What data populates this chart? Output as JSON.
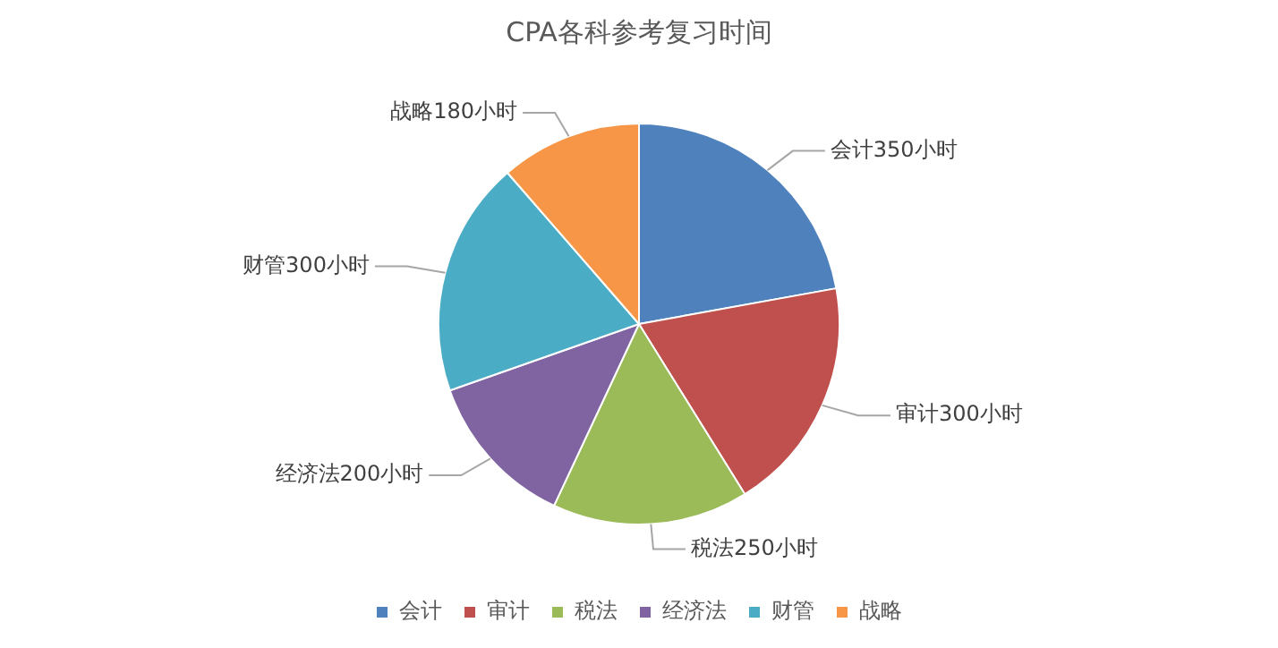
{
  "chart_data": {
    "type": "pie",
    "title": "CPA各科参考复习时间",
    "categories": [
      "会计",
      "审计",
      "税法",
      "经济法",
      "财管",
      "战略"
    ],
    "values": [
      350,
      300,
      250,
      200,
      300,
      180
    ],
    "colors": [
      "#4f81bd",
      "#c0504d",
      "#9bbb59",
      "#8064a2",
      "#4bacc6",
      "#f79646"
    ],
    "value_labels": [
      "会计350小时",
      "审计300小时",
      "税法250小时",
      "经济法200小时",
      "财管300小时",
      "战略180小时"
    ],
    "legend": "bottom"
  }
}
